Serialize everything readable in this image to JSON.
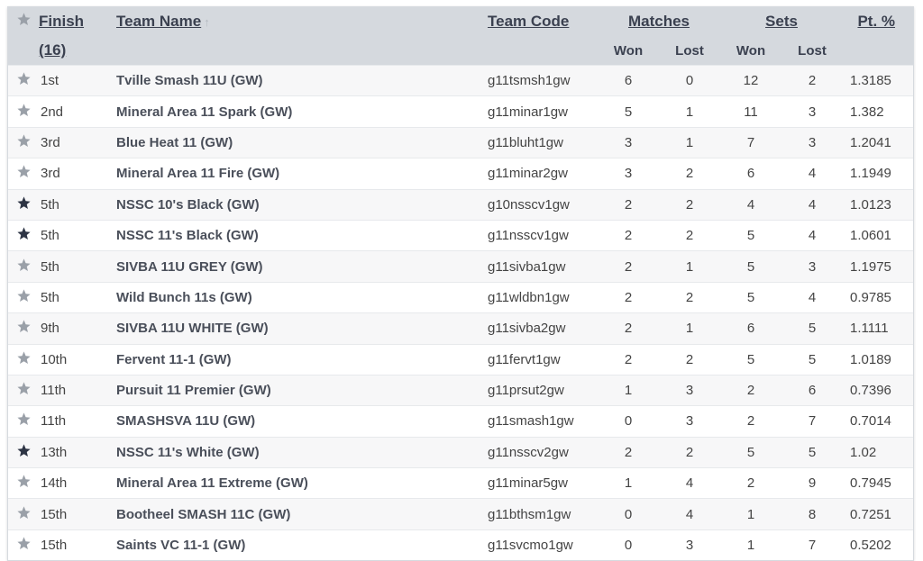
{
  "header": {
    "finish_label": "Finish",
    "finish_count": "(16)",
    "team_name_label": "Team Name",
    "sort_arrow": "↑",
    "team_code_label": "Team Code",
    "matches_label": "Matches",
    "sets_label": "Sets",
    "pt_label": "Pt. %",
    "won_label": "Won",
    "lost_label": "Lost",
    "sets_won_label": "Won",
    "sets_lost_label": "Lost"
  },
  "colors": {
    "star_grey": "#9aa0a8",
    "star_dark": "#2d3444",
    "header_bg": "#d5d9de"
  },
  "rows": [
    {
      "star": "grey",
      "finish": "1st",
      "team": "Tville Smash 11U (GW)",
      "code": "g11tsmsh1gw",
      "mw": "6",
      "ml": "0",
      "sw": "12",
      "sl": "2",
      "pt": "1.3185"
    },
    {
      "star": "grey",
      "finish": "2nd",
      "team": "Mineral Area 11 Spark (GW)",
      "code": "g11minar1gw",
      "mw": "5",
      "ml": "1",
      "sw": "11",
      "sl": "3",
      "pt": "1.382"
    },
    {
      "star": "grey",
      "finish": "3rd",
      "team": "Blue Heat 11 (GW)",
      "code": "g11bluht1gw",
      "mw": "3",
      "ml": "1",
      "sw": "7",
      "sl": "3",
      "pt": "1.2041"
    },
    {
      "star": "grey",
      "finish": "3rd",
      "team": "Mineral Area 11 Fire (GW)",
      "code": "g11minar2gw",
      "mw": "3",
      "ml": "2",
      "sw": "6",
      "sl": "4",
      "pt": "1.1949"
    },
    {
      "star": "dark",
      "finish": "5th",
      "team": "NSSC 10's Black (GW)",
      "code": "g10nsscv1gw",
      "mw": "2",
      "ml": "2",
      "sw": "4",
      "sl": "4",
      "pt": "1.0123"
    },
    {
      "star": "dark",
      "finish": "5th",
      "team": "NSSC 11's Black (GW)",
      "code": "g11nsscv1gw",
      "mw": "2",
      "ml": "2",
      "sw": "5",
      "sl": "4",
      "pt": "1.0601"
    },
    {
      "star": "grey",
      "finish": "5th",
      "team": "SIVBA 11U GREY (GW)",
      "code": "g11sivba1gw",
      "mw": "2",
      "ml": "1",
      "sw": "5",
      "sl": "3",
      "pt": "1.1975"
    },
    {
      "star": "grey",
      "finish": "5th",
      "team": "Wild Bunch 11s (GW)",
      "code": "g11wldbn1gw",
      "mw": "2",
      "ml": "2",
      "sw": "5",
      "sl": "4",
      "pt": "0.9785"
    },
    {
      "star": "grey",
      "finish": "9th",
      "team": "SIVBA 11U WHITE (GW)",
      "code": "g11sivba2gw",
      "mw": "2",
      "ml": "1",
      "sw": "6",
      "sl": "5",
      "pt": "1.1111"
    },
    {
      "star": "grey",
      "finish": "10th",
      "team": "Fervent 11-1 (GW)",
      "code": "g11fervt1gw",
      "mw": "2",
      "ml": "2",
      "sw": "5",
      "sl": "5",
      "pt": "1.0189"
    },
    {
      "star": "grey",
      "finish": "11th",
      "team": "Pursuit 11 Premier (GW)",
      "code": "g11prsut2gw",
      "mw": "1",
      "ml": "3",
      "sw": "2",
      "sl": "6",
      "pt": "0.7396"
    },
    {
      "star": "grey",
      "finish": "11th",
      "team": "SMASHSVA 11U (GW)",
      "code": "g11smash1gw",
      "mw": "0",
      "ml": "3",
      "sw": "2",
      "sl": "7",
      "pt": "0.7014"
    },
    {
      "star": "dark",
      "finish": "13th",
      "team": "NSSC 11's White (GW)",
      "code": "g11nsscv2gw",
      "mw": "2",
      "ml": "2",
      "sw": "5",
      "sl": "5",
      "pt": "1.02"
    },
    {
      "star": "grey",
      "finish": "14th",
      "team": "Mineral Area 11 Extreme (GW)",
      "code": "g11minar5gw",
      "mw": "1",
      "ml": "4",
      "sw": "2",
      "sl": "9",
      "pt": "0.7945"
    },
    {
      "star": "grey",
      "finish": "15th",
      "team": "Bootheel SMASH 11C (GW)",
      "code": "g11bthsm1gw",
      "mw": "0",
      "ml": "4",
      "sw": "1",
      "sl": "8",
      "pt": "0.7251"
    },
    {
      "star": "grey",
      "finish": "15th",
      "team": "Saints VC 11-1 (GW)",
      "code": "g11svcmo1gw",
      "mw": "0",
      "ml": "3",
      "sw": "1",
      "sl": "7",
      "pt": "0.5202"
    }
  ]
}
